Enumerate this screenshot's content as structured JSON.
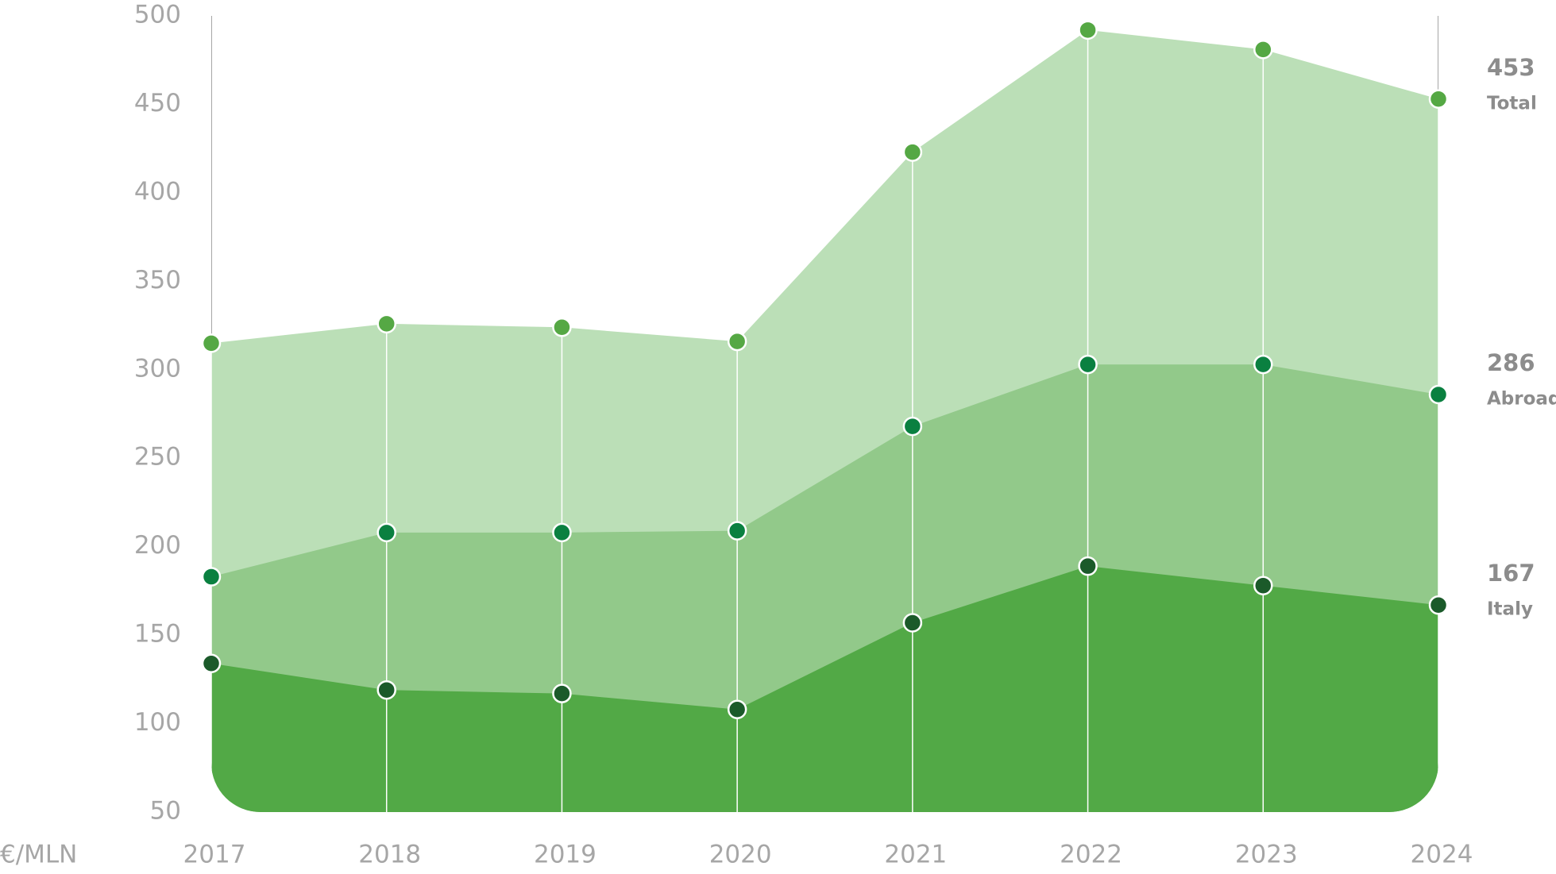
{
  "chart_data": {
    "type": "area",
    "unit_label": "€/MLN",
    "categories": [
      "2017",
      "2018",
      "2019",
      "2020",
      "2021",
      "2022",
      "2023",
      "2024"
    ],
    "series": [
      {
        "name": "Total",
        "color": "#bbdfb7",
        "marker_color": "#55a844",
        "values": [
          315,
          326,
          324,
          316,
          423,
          492,
          481,
          453
        ]
      },
      {
        "name": "Abroad",
        "color": "#92c98a",
        "marker_color": "#0a8040",
        "values": [
          183,
          208,
          208,
          209,
          268,
          303,
          303,
          286
        ]
      },
      {
        "name": "Italy",
        "color": "#52a946",
        "marker_color": "#1b5a2a",
        "values": [
          134,
          119,
          117,
          108,
          157,
          189,
          178,
          167
        ]
      }
    ],
    "ylim": [
      50,
      500
    ],
    "yticks": [
      50,
      100,
      150,
      200,
      250,
      300,
      350,
      400,
      450,
      500
    ]
  }
}
